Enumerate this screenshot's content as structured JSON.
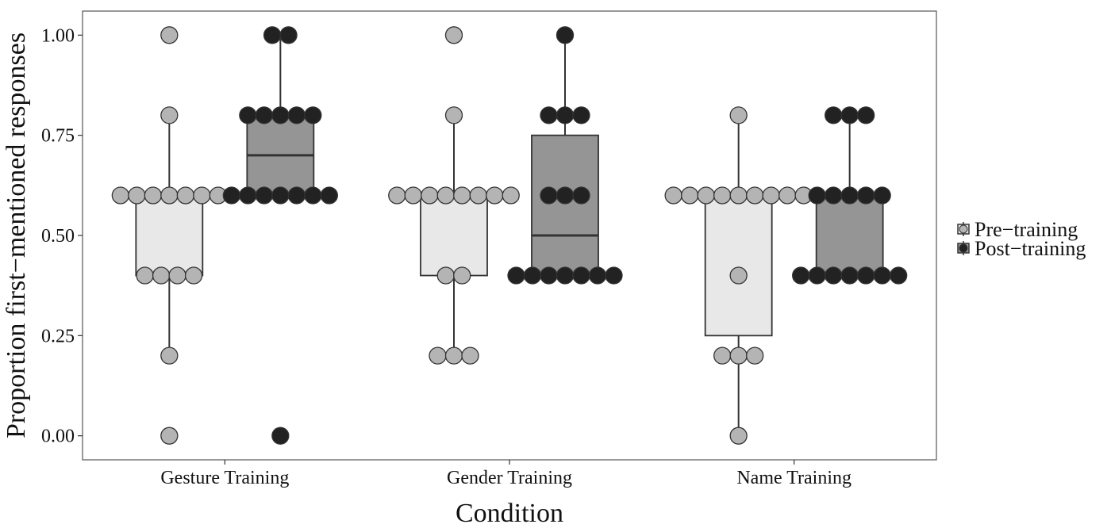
{
  "chart_data": {
    "type": "boxplot",
    "xlabel": "Condition",
    "ylabel": "Proportion first−mentioned responses",
    "categories": [
      "Gesture Training",
      "Gender Training",
      "Name Training"
    ],
    "ylim": [
      -0.06,
      1.06
    ],
    "yticks": [
      "0.00",
      "0.25",
      "0.50",
      "0.75",
      "1.00"
    ],
    "grid": false,
    "legend_position": "right",
    "series": [
      {
        "name": "Pre−training",
        "box_color": "#e8e8e8",
        "point_color": "#b4b4b4",
        "boxes": [
          {
            "q1": 0.4,
            "median": 0.6,
            "q3": 0.6,
            "whisker_low": 0.2,
            "whisker_high": 0.8,
            "points": [
              0.0,
              0.2,
              0.4,
              0.4,
              0.4,
              0.4,
              0.6,
              0.6,
              0.6,
              0.6,
              0.6,
              0.6,
              0.6,
              0.8,
              1.0
            ]
          },
          {
            "q1": 0.4,
            "median": 0.6,
            "q3": 0.6,
            "whisker_low": 0.2,
            "whisker_high": 0.8,
            "points": [
              0.2,
              0.2,
              0.2,
              0.4,
              0.4,
              0.6,
              0.6,
              0.6,
              0.6,
              0.6,
              0.6,
              0.6,
              0.6,
              0.8,
              1.0
            ]
          },
          {
            "q1": 0.25,
            "median": 0.6,
            "q3": 0.6,
            "whisker_low": 0.0,
            "whisker_high": 0.8,
            "points": [
              0.0,
              0.2,
              0.2,
              0.2,
              0.4,
              0.6,
              0.6,
              0.6,
              0.6,
              0.6,
              0.6,
              0.6,
              0.6,
              0.6,
              0.8
            ]
          }
        ]
      },
      {
        "name": "Post−training",
        "box_color": "#959595",
        "point_color": "#222222",
        "boxes": [
          {
            "q1": 0.6,
            "median": 0.7,
            "q3": 0.8,
            "whisker_low": 0.6,
            "whisker_high": 1.0,
            "points": [
              0.0,
              0.6,
              0.6,
              0.6,
              0.6,
              0.6,
              0.6,
              0.6,
              0.8,
              0.8,
              0.8,
              0.8,
              0.8,
              1.0,
              1.0
            ]
          },
          {
            "q1": 0.4,
            "median": 0.5,
            "q3": 0.75,
            "whisker_low": 0.4,
            "whisker_high": 1.0,
            "points": [
              0.4,
              0.4,
              0.4,
              0.4,
              0.4,
              0.4,
              0.4,
              0.6,
              0.6,
              0.6,
              0.8,
              0.8,
              0.8,
              1.0
            ]
          },
          {
            "q1": 0.4,
            "median": 0.4,
            "q3": 0.6,
            "whisker_low": 0.4,
            "whisker_high": 0.8,
            "points": [
              0.4,
              0.4,
              0.4,
              0.4,
              0.4,
              0.4,
              0.4,
              0.6,
              0.6,
              0.6,
              0.6,
              0.6,
              0.8,
              0.8,
              0.8
            ]
          }
        ]
      }
    ]
  }
}
